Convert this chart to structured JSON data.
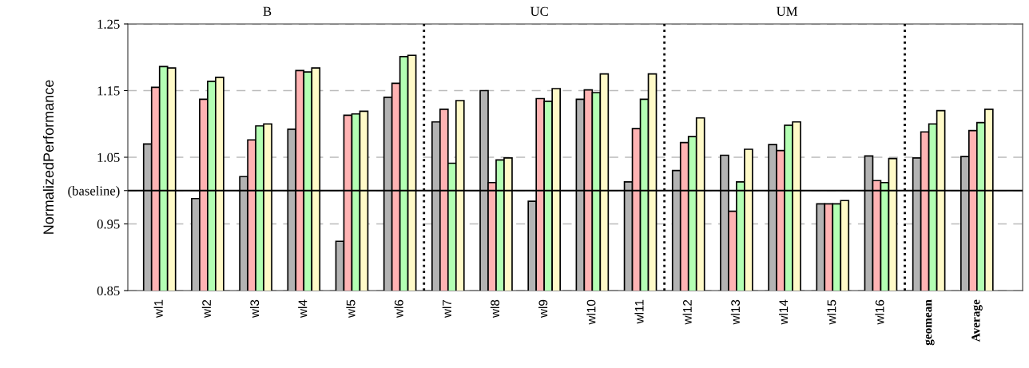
{
  "chart_data": {
    "type": "bar",
    "ylabel": "NormalizedPerformance",
    "categories": [
      "wl1",
      "wl2",
      "wl3",
      "wl4",
      "wl5",
      "wl6",
      "wl7",
      "wl8",
      "wl9",
      "wl10",
      "wl11",
      "wl12",
      "wl13",
      "wl14",
      "wl15",
      "wl16",
      "geomean",
      "Average"
    ],
    "series": [
      {
        "color": "#b3b3b3",
        "values": [
          1.07,
          0.988,
          1.021,
          1.092,
          0.924,
          1.14,
          1.103,
          1.15,
          0.984,
          1.137,
          1.013,
          1.03,
          1.053,
          1.069,
          0.98,
          1.052,
          1.049,
          1.051
        ]
      },
      {
        "color": "#ffb3b3",
        "values": [
          1.155,
          1.137,
          1.076,
          1.18,
          1.113,
          1.161,
          1.122,
          1.012,
          1.138,
          1.151,
          1.093,
          1.072,
          0.969,
          1.06,
          0.98,
          1.015,
          1.088,
          1.09
        ]
      },
      {
        "color": "#b3ffb3",
        "values": [
          1.186,
          1.164,
          1.097,
          1.178,
          1.115,
          1.201,
          1.041,
          1.046,
          1.134,
          1.147,
          1.137,
          1.081,
          1.013,
          1.098,
          0.98,
          1.012,
          1.1,
          1.102
        ]
      },
      {
        "color": "#fffac8",
        "values": [
          1.184,
          1.17,
          1.1,
          1.184,
          1.119,
          1.203,
          1.135,
          1.049,
          1.153,
          1.175,
          1.175,
          1.109,
          1.062,
          1.103,
          0.985,
          1.048,
          1.12,
          1.122
        ]
      }
    ],
    "ylim": [
      0.85,
      1.25
    ],
    "yticks": [
      0.85,
      0.95,
      {
        "value": 1.0,
        "label": "(baseline)"
      },
      1.05,
      1.15,
      1.25
    ],
    "grid": "y",
    "ref_lines": [
      {
        "axis": "y",
        "value": 1.0,
        "color": "#000000",
        "line_style": "solid"
      }
    ],
    "annotations": [
      "B",
      "UC",
      "UM"
    ]
  }
}
